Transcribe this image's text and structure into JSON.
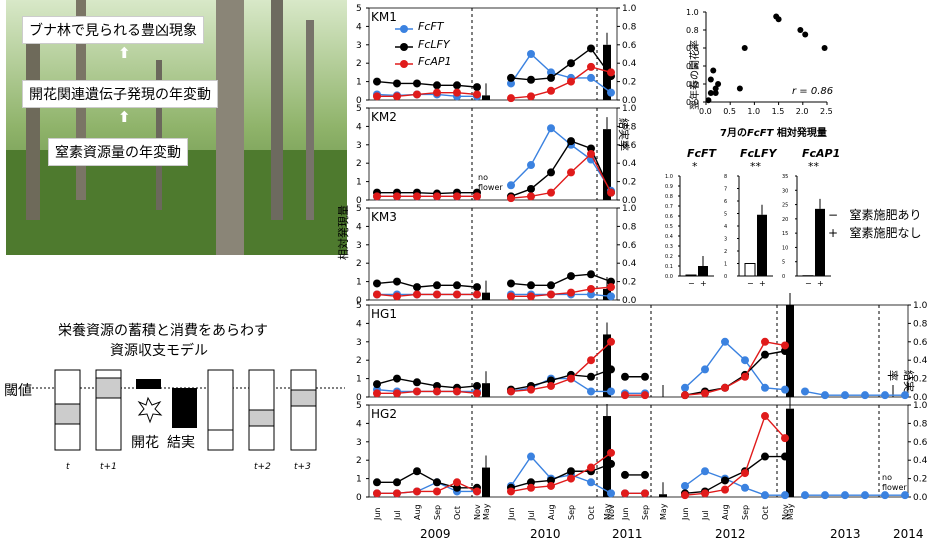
{
  "photo": {
    "cap1": "ブナ林で見られる豊凶現象",
    "cap2": "開花関連遺伝子発現の年変動",
    "cap3": "窒素資源量の年変動"
  },
  "model": {
    "title1": "栄養資源の蓄積と消費をあらわす",
    "title2": "資源収支モデル",
    "threshold": "閾値",
    "flower": "開花",
    "fruit": "結実",
    "t_labels": [
      "t",
      "t+1",
      "t+2",
      "t+3"
    ]
  },
  "legend": {
    "s1": "FcFT",
    "s2": "FcLFY",
    "s3": "FcAP1"
  },
  "axes": {
    "ylabel_left": "相対発現量",
    "ylabel_right": "結実率",
    "left_ticks": [
      "0",
      "1",
      "2",
      "3",
      "4",
      "5"
    ],
    "right_ticks": [
      "0.0",
      "0.2",
      "0.4",
      "0.6",
      "0.8",
      "1.0"
    ],
    "months": [
      "Jun",
      "Jul",
      "Aug",
      "Sep",
      "Oct",
      "Nov",
      "May"
    ],
    "years": [
      "2009",
      "2010",
      "2011",
      "2012",
      "2013",
      "2014"
    ],
    "no_flower": "no flower"
  },
  "scatter": {
    "ylabel": "翌年春の開花率",
    "xlabel_pre": "7月の",
    "xlabel_it": "FcFT",
    "xlabel_post": " 相対発現量",
    "r": "r = 0.86",
    "xticks": [
      "0.0",
      "0.5",
      "1.0",
      "1.5",
      "2.0",
      "2.5"
    ],
    "yticks": [
      "0.0",
      "0.2",
      "0.4",
      "0.6",
      "0.8",
      "1.0"
    ]
  },
  "fert": {
    "genes": [
      "FcFT",
      "FcLFY",
      "FcAP1"
    ],
    "sig": [
      "*",
      "**",
      "**"
    ],
    "minus": "−",
    "plus": "+",
    "leg1": "窒素施肥あり",
    "leg2": "窒素施肥なし",
    "leg_minus": "−",
    "leg_plus": "+",
    "yticks": [
      [
        "0.0",
        "0.1",
        "0.2",
        "0.3",
        "0.4",
        "0.5",
        "0.6",
        "0.7",
        "0.8",
        "0.9",
        "1.0"
      ],
      [
        "0",
        "1",
        "2",
        "3",
        "4",
        "5",
        "6",
        "7",
        "8"
      ],
      [
        "0",
        "5",
        "10",
        "15",
        "20",
        "25",
        "30",
        "35"
      ]
    ]
  },
  "chart_data": [
    {
      "type": "line",
      "panel": "KM1",
      "ylim": [
        0,
        5
      ],
      "series": [
        {
          "name": "FcFT",
          "color": "#3b82e0",
          "values": {
            "2009": [
              0.3,
              0.25,
              0.3,
              0.3,
              0.2,
              0.2
            ],
            "2010": [
              0.9,
              2.5,
              1.5,
              1.2,
              1.2,
              0.4
            ]
          }
        },
        {
          "name": "FcLFY",
          "color": "#000000",
          "values": {
            "2009": [
              1.0,
              0.9,
              0.9,
              0.8,
              0.8,
              0.7
            ],
            "2010": [
              1.2,
              1.1,
              1.2,
              2.0,
              2.8,
              1.3
            ]
          }
        },
        {
          "name": "FcAP1",
          "color": "#e01b1b",
          "values": {
            "2009": [
              0.2,
              0.2,
              0.3,
              0.4,
              0.4,
              0.3
            ],
            "2010": [
              0.1,
              0.2,
              0.5,
              1.0,
              1.8,
              1.5
            ]
          }
        }
      ],
      "fruit": {
        "May2010": 0.05,
        "May2011": 0.6
      }
    },
    {
      "type": "line",
      "panel": "KM2",
      "ylim": [
        0,
        5
      ],
      "series": [
        {
          "name": "FcFT",
          "values": {
            "2009": [
              0.2,
              0.2,
              0.2,
              0.2,
              0.2,
              0.2
            ],
            "2010": [
              0.8,
              1.9,
              3.9,
              3.0,
              2.2,
              0.5
            ]
          }
        },
        {
          "name": "FcLFY",
          "values": {
            "2009": [
              0.4,
              0.4,
              0.4,
              0.35,
              0.4,
              0.4
            ],
            "2010": [
              0.2,
              0.6,
              1.5,
              3.2,
              2.8,
              0.4
            ]
          }
        },
        {
          "name": "FcAP1",
          "values": {
            "2009": [
              0.2,
              0.2,
              0.2,
              0.2,
              0.2,
              0.2
            ],
            "2010": [
              0.1,
              0.2,
              0.4,
              1.5,
              2.5,
              0.4
            ]
          }
        }
      ],
      "fruit": {
        "May2011": 0.77
      }
    },
    {
      "type": "line",
      "panel": "KM3",
      "ylim": [
        0,
        5
      ],
      "series": [
        {
          "name": "FcFT",
          "values": {
            "2009": [
              0.3,
              0.3,
              0.3,
              0.3,
              0.3,
              0.3
            ],
            "2010": [
              0.3,
              0.3,
              0.3,
              0.3,
              0.3,
              0.2
            ]
          }
        },
        {
          "name": "FcLFY",
          "values": {
            "2009": [
              0.9,
              1.0,
              0.7,
              0.8,
              0.8,
              0.7
            ],
            "2010": [
              0.9,
              0.8,
              0.8,
              1.3,
              1.4,
              1.0
            ]
          }
        },
        {
          "name": "FcAP1",
          "values": {
            "2009": [
              0.3,
              0.2,
              0.3,
              0.3,
              0.3,
              0.3
            ],
            "2010": [
              0.2,
              0.2,
              0.3,
              0.4,
              0.6,
              0.7
            ]
          }
        }
      ],
      "fruit": {
        "May2010": 0.08,
        "May2011": 0.12
      }
    },
    {
      "type": "line",
      "panel": "HG1",
      "ylim": [
        0,
        5
      ],
      "series": [
        {
          "name": "FcFT",
          "values": {
            "2009": [
              0.4,
              0.3,
              0.3,
              0.3,
              0.3,
              0.3
            ],
            "2010": [
              0.3,
              0.5,
              1.0,
              1.0,
              0.3,
              0.3
            ],
            "2011": [
              0.2,
              0.2
            ],
            "2012": [
              0.5,
              1.5,
              3.0,
              2.0,
              0.5,
              0.4
            ],
            "2013": [
              0.3,
              0.1,
              0.1,
              0.1,
              0.1,
              0.1
            ]
          }
        },
        {
          "name": "FcLFY",
          "values": {
            "2009": [
              0.7,
              1.0,
              0.8,
              0.6,
              0.5,
              0.6
            ],
            "2010": [
              0.4,
              0.6,
              0.9,
              1.2,
              1.1,
              1.5
            ],
            "2011": [
              1.1,
              1.1
            ],
            "2012": [
              0.1,
              0.3,
              0.5,
              1.2,
              2.3,
              2.5
            ]
          }
        },
        {
          "name": "FcAP1",
          "values": {
            "2009": [
              0.2,
              0.2,
              0.3,
              0.3,
              0.3,
              0.2
            ],
            "2010": [
              0.3,
              0.4,
              0.6,
              1.0,
              2.0,
              3.0
            ],
            "2011": [
              0.1,
              0.1
            ],
            "2012": [
              0.1,
              0.2,
              0.5,
              1.1,
              3.0,
              2.8
            ]
          }
        }
      ],
      "fruit": {
        "May2010": 0.15,
        "May2011": 0.68,
        "May2012": 0.0,
        "May2013": 1.0,
        "May2014": 0.0
      }
    },
    {
      "type": "line",
      "panel": "HG2",
      "ylim": [
        0,
        5
      ],
      "series": [
        {
          "name": "FcFT",
          "values": {
            "2009": [
              0.2,
              0.2,
              0.3,
              0.8,
              0.3,
              0.3
            ],
            "2010": [
              0.6,
              2.2,
              1.0,
              1.2,
              0.8,
              0.2
            ],
            "2011": [
              0.2,
              0.2
            ],
            "2012": [
              0.6,
              1.4,
              1.0,
              0.5,
              0.1,
              0.1
            ],
            "2013": [
              0.1,
              0.1,
              0.1,
              0.1,
              0.1,
              0.1
            ]
          }
        },
        {
          "name": "FcLFY",
          "values": {
            "2009": [
              0.8,
              0.8,
              1.4,
              0.8,
              0.5,
              0.5
            ],
            "2010": [
              0.5,
              0.8,
              0.9,
              1.4,
              1.4,
              1.8
            ],
            "2011": [
              1.2,
              1.2
            ],
            "2012": [
              0.2,
              0.3,
              0.9,
              1.4,
              2.2,
              2.2
            ]
          }
        },
        {
          "name": "FcAP1",
          "values": {
            "2009": [
              0.2,
              0.2,
              0.3,
              0.3,
              0.8,
              0.3
            ],
            "2010": [
              0.3,
              0.5,
              0.6,
              1.0,
              1.6,
              2.4
            ],
            "2011": [
              0.2,
              0.2
            ],
            "2012": [
              0.1,
              0.2,
              0.4,
              1.3,
              4.4,
              3.2
            ]
          }
        }
      ],
      "fruit": {
        "May2010": 0.32,
        "May2011": 0.88,
        "May2012": 0.03,
        "May2013": 0.96,
        "May2014": "no flower"
      }
    },
    {
      "type": "scatter",
      "panel": "correlation",
      "x": [
        0.05,
        0.1,
        0.1,
        0.15,
        0.2,
        0.2,
        0.25,
        0.7,
        0.8,
        1.45,
        1.5,
        1.95,
        2.05,
        2.45
      ],
      "y": [
        0.02,
        0.1,
        0.25,
        0.35,
        0.1,
        0.15,
        0.2,
        0.15,
        0.6,
        0.95,
        0.92,
        0.8,
        0.75,
        0.6
      ],
      "xlim": [
        0,
        2.5
      ],
      "ylim": [
        0,
        1
      ]
    },
    {
      "type": "bar",
      "panel": "fertilization",
      "categories": [
        "FcFT",
        "FcLFY",
        "FcAP1"
      ],
      "series": [
        {
          "name": "窒素施肥あり",
          "values": [
            0.01,
            1.0,
            0.1
          ]
        },
        {
          "name": "窒素施肥なし",
          "values": [
            0.1,
            4.9,
            23.5
          ]
        }
      ],
      "ylims": [
        [
          0,
          1
        ],
        [
          0,
          8
        ],
        [
          0,
          35
        ]
      ]
    }
  ]
}
